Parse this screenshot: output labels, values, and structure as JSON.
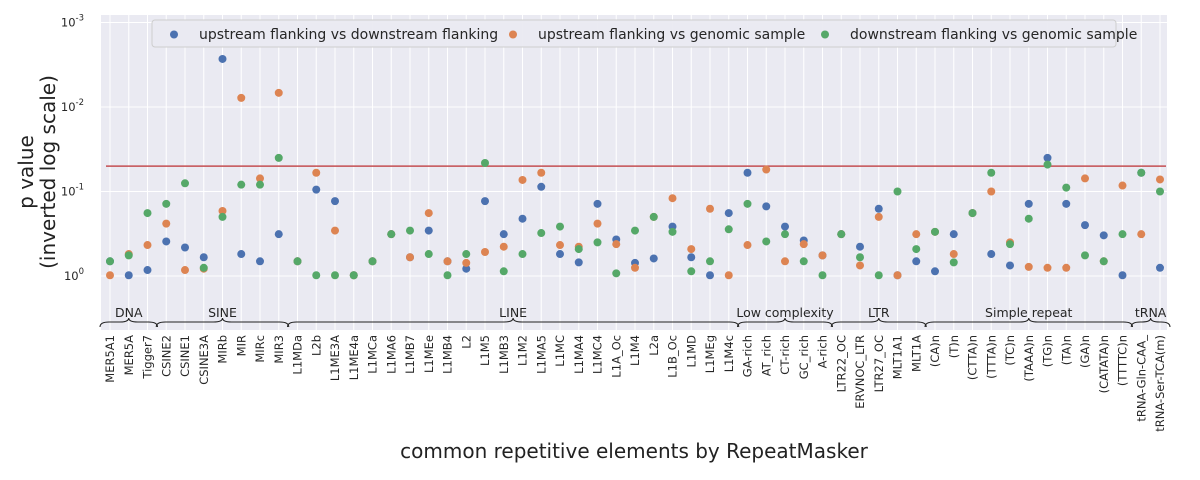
{
  "chart_data": {
    "type": "scatter",
    "ylabel_line1": "p value",
    "ylabel_line2": "(inverted log scale)",
    "xlabel": "common repetitive elements by RepeatMasker",
    "y_scale": "log, inverted",
    "ylim": [
      1.6,
      0.001
    ],
    "y_ticks": [
      {
        "value": 1,
        "label": "10",
        "exp": "0"
      },
      {
        "value": 0.1,
        "label": "10",
        "exp": "-1"
      },
      {
        "value": 0.01,
        "label": "10",
        "exp": "-2"
      },
      {
        "value": 0.001,
        "label": "10",
        "exp": "-3"
      }
    ],
    "threshold": 0.05,
    "grid": true,
    "legend_position": "top",
    "categories": [
      "MER5A1",
      "MER5A",
      "Tigger7",
      "CSINE2",
      "CSINE1",
      "CSINE3A",
      "MIRb",
      "MIR",
      "MIRc",
      "MIR3",
      "L1MDa",
      "L2b",
      "L1ME3A",
      "L1ME4a",
      "L1MCa",
      "L1MA6",
      "L1MB7",
      "L1MEe",
      "L1MB4",
      "L2",
      "L1M5",
      "L1MB3",
      "L1M2",
      "L1MA5",
      "L1MC",
      "L1MA4",
      "L1MC4",
      "L1A_Oc",
      "L1M4",
      "L2a",
      "L1B_Oc",
      "L1MD",
      "L1MEg",
      "L1M4c",
      "GA-rich",
      "AT_rich",
      "CT-rich",
      "GC_rich",
      "A-rich",
      "LTR22_OC",
      "ERVNOC_LTR",
      "LTR27_OC",
      "MLT1A1",
      "MLT1A",
      "(CA)n",
      "(T)n",
      "(CTTA)n",
      "(TTTA)n",
      "(TC)n",
      "(TAAA)n",
      "(TG)n",
      "(TA)n",
      "(GA)n",
      "(CATATA)n",
      "(TTTTC)n",
      "tRNA-Gln-CAA_",
      "tRNA-Ser-TCA(m)"
    ],
    "groups": [
      {
        "name": "DNA",
        "start": 0,
        "end": 2
      },
      {
        "name": "SINE",
        "start": 3,
        "end": 9
      },
      {
        "name": "LINE",
        "start": 10,
        "end": 33
      },
      {
        "name": "Low complexity",
        "start": 34,
        "end": 38
      },
      {
        "name": "LTR",
        "start": 39,
        "end": 43
      },
      {
        "name": "Simple repeat",
        "start": 44,
        "end": 54
      },
      {
        "name": "tRNA",
        "start": 55,
        "end": 56
      }
    ],
    "series": [
      {
        "name": "upstream flanking vs downstream flanking",
        "color": "#4c72b0",
        "values": [
          0.67,
          0.98,
          0.85,
          0.39,
          0.46,
          0.6,
          0.0027,
          0.55,
          0.67,
          0.32,
          0.67,
          0.095,
          0.13,
          0.98,
          0.67,
          0.32,
          0.6,
          0.29,
          0.67,
          0.82,
          0.13,
          0.32,
          0.21,
          0.088,
          0.55,
          0.69,
          0.14,
          0.37,
          0.7,
          0.62,
          0.26,
          0.6,
          0.98,
          0.18,
          0.06,
          0.15,
          0.26,
          0.38,
          0.57,
          0.32,
          0.45,
          0.16,
          0.98,
          0.67,
          0.88,
          0.32,
          0.18,
          0.55,
          0.75,
          0.14,
          0.04,
          0.14,
          0.25,
          0.33,
          0.98,
          0.06,
          0.8
        ]
      },
      {
        "name": "upstream flanking vs genomic sample",
        "color": "#dd8452",
        "values": [
          0.98,
          0.55,
          0.43,
          0.24,
          0.85,
          0.82,
          0.17,
          0.0078,
          0.07,
          0.0068,
          0.67,
          0.06,
          0.29,
          0.98,
          0.67,
          0.32,
          0.6,
          0.18,
          0.67,
          0.7,
          0.52,
          0.45,
          0.073,
          0.06,
          0.43,
          0.45,
          0.24,
          0.42,
          0.8,
          0.2,
          0.12,
          0.48,
          0.16,
          0.98,
          0.43,
          0.055,
          0.67,
          0.42,
          0.57,
          0.32,
          0.75,
          0.2,
          0.98,
          0.32,
          0.3,
          0.55,
          0.18,
          0.1,
          0.4,
          0.78,
          0.8,
          0.8,
          0.07,
          0.67,
          0.085,
          0.32,
          0.072
        ]
      },
      {
        "name": "downstream flanking vs genomic sample",
        "color": "#55a868",
        "values": [
          0.67,
          0.57,
          0.18,
          0.14,
          0.08,
          0.8,
          0.2,
          0.083,
          0.083,
          0.04,
          0.67,
          0.98,
          0.98,
          0.98,
          0.67,
          0.32,
          0.29,
          0.55,
          0.98,
          0.55,
          0.046,
          0.88,
          0.55,
          0.31,
          0.26,
          0.48,
          0.4,
          0.93,
          0.29,
          0.2,
          0.3,
          0.88,
          0.67,
          0.28,
          0.14,
          0.39,
          0.32,
          0.67,
          0.98,
          0.32,
          0.6,
          0.98,
          0.1,
          0.48,
          0.3,
          0.69,
          0.18,
          0.06,
          0.42,
          0.21,
          0.048,
          0.09,
          0.57,
          0.67,
          0.32,
          0.06,
          0.1
        ]
      }
    ]
  }
}
